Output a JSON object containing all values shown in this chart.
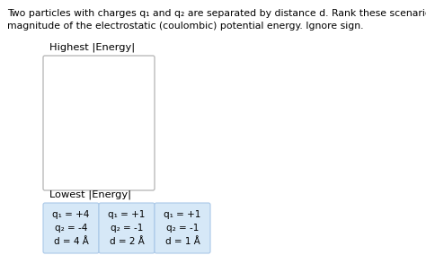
{
  "title_line1": "Two particles with charges q₁ and q₂ are separated by distance d. Rank these scenarios according to the",
  "title_line2": "magnitude of the electrostatic (coulombic) potential energy. Ignore sign.",
  "highest_label": "Highest |Energy|",
  "lowest_label": "Lowest |Energy|",
  "cards": [
    {
      "lines": [
        "q₁ = +4",
        "q₂ = -4",
        "d = 4 Å"
      ]
    },
    {
      "lines": [
        "q₁ = +1",
        "q₂ = -1",
        "d = 2 Å"
      ]
    },
    {
      "lines": [
        "q₁ = +1",
        "q₂ = -1",
        "d = 1 Å"
      ]
    }
  ],
  "card_color": "#d6e8f7",
  "card_border": "#aac8e8",
  "box_face": "#ffffff",
  "box_edge": "#bbbbbb",
  "bg_color": "#ffffff",
  "title_fontsize": 7.8,
  "label_fontsize": 8.2,
  "card_fontsize": 7.5
}
